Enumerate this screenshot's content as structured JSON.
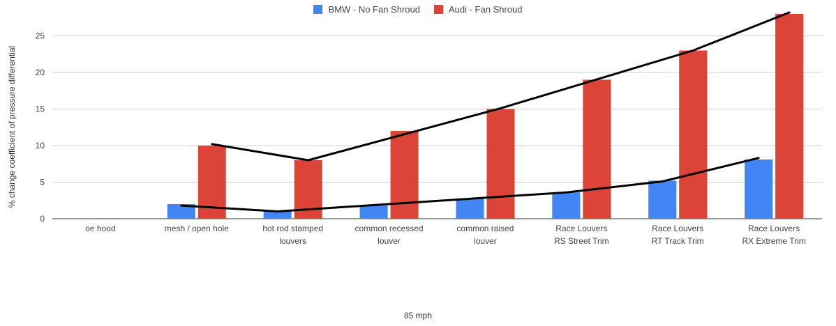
{
  "chart_data": {
    "type": "bar",
    "xlabel": "85 mph",
    "ylabel": "% change coefficient of pressure differential",
    "ylim": [
      0,
      28
    ],
    "yticks": [
      0,
      5,
      10,
      15,
      20,
      25
    ],
    "grid": true,
    "legend_position": "top",
    "categories": [
      [
        "oe hood"
      ],
      [
        "mesh / open hole"
      ],
      [
        "hot rod stamped",
        "louvers"
      ],
      [
        "common recessed",
        "louver"
      ],
      [
        "common raised",
        "louver"
      ],
      [
        "Race Louvers",
        "RS Street Trim"
      ],
      [
        "Race Louvers",
        "RT Track Trim"
      ],
      [
        "Race Louvers",
        "RX Extreme Trim"
      ]
    ],
    "series": [
      {
        "name": "BMW - No Fan Shroud",
        "color": "#4285f4",
        "values": [
          0,
          2,
          1,
          1.8,
          2.8,
          3.6,
          5.2,
          8.1
        ]
      },
      {
        "name": "Audi - Fan Shroud",
        "color": "#db4437",
        "values": [
          0,
          10,
          8,
          12,
          15,
          19,
          23,
          28
        ]
      }
    ],
    "trendlines": [
      {
        "series": "BMW - No Fan Shroud",
        "points": [
          [
            1,
            1.8
          ],
          [
            2,
            1.0
          ],
          [
            5,
            3.6
          ],
          [
            6,
            5.1
          ],
          [
            7,
            8.3
          ]
        ]
      },
      {
        "series": "Audi - Fan Shroud",
        "points": [
          [
            1,
            10.2
          ],
          [
            2,
            8.0
          ],
          [
            4,
            15.1
          ],
          [
            6,
            23.0
          ],
          [
            7,
            28.2
          ]
        ]
      }
    ]
  }
}
